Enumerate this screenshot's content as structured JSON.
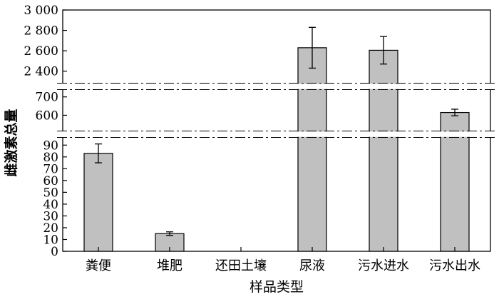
{
  "chart_data": {
    "type": "bar",
    "title": "",
    "xlabel": "样品类型",
    "ylabel": "雌激素总量",
    "categories": [
      "粪便",
      "堆肥",
      "还田土壤",
      "尿液",
      "污水进水",
      "污水出水"
    ],
    "values": [
      83,
      15,
      0,
      2630,
      2605,
      615
    ],
    "errors": [
      8,
      1.5,
      0,
      200,
      135,
      18
    ],
    "y_axis_breaks": [
      {
        "segment": "upper",
        "ylim": [
          2300,
          3000
        ],
        "ticks": [
          "2 400",
          "2 600",
          "2 800",
          "3 000"
        ]
      },
      {
        "segment": "middle",
        "ylim": [
          520,
          730
        ],
        "ticks": [
          "600",
          "700"
        ]
      },
      {
        "segment": "lower",
        "ylim": [
          0,
          95
        ],
        "ticks": [
          "0",
          "10",
          "20",
          "30",
          "40",
          "50",
          "60",
          "70",
          "80",
          "90"
        ]
      }
    ],
    "bar_color": "#c0c0c0",
    "grid": false
  }
}
